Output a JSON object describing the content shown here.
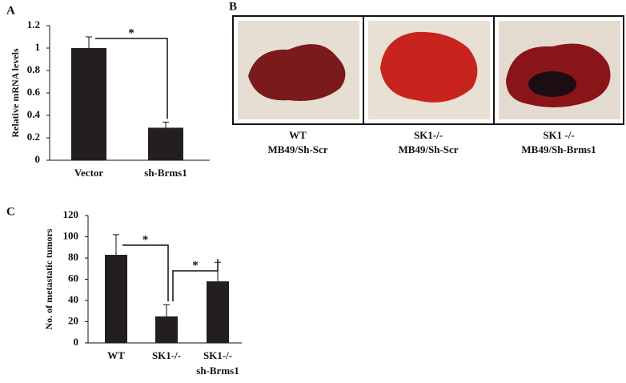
{
  "chart_data": [
    {
      "type": "bar",
      "panel_label": "A",
      "y_label": "Relative mRNA levels",
      "categories": [
        [
          "Vector"
        ],
        [
          "sh-Brms1"
        ]
      ],
      "values": [
        1.0,
        0.29
      ],
      "errors": [
        0.1,
        0.05
      ],
      "color": "#231f20",
      "ylim": [
        0,
        1.2
      ],
      "yticks": [
        0,
        0.2,
        0.4,
        0.6,
        0.8,
        1,
        1.2
      ],
      "significance": [
        "*"
      ]
    },
    {
      "type": "bar",
      "panel_label": "C",
      "y_label": "No. of metastatic tumors",
      "categories": [
        [
          "WT"
        ],
        [
          "SK1-/-"
        ],
        [
          "SK1-/-",
          "sh-Brms1"
        ]
      ],
      "values": [
        83,
        25,
        58
      ],
      "errors": [
        19,
        11,
        18
      ],
      "color": "#231f20",
      "ylim": [
        0,
        120
      ],
      "yticks": [
        0,
        20,
        40,
        60,
        80,
        100,
        120
      ],
      "significance": [
        "*",
        "*"
      ]
    }
  ],
  "photo_panel": {
    "panel_label": "B",
    "captions": [
      [
        "WT",
        "MB49/Sh-Scr"
      ],
      [
        "SK1-/-",
        "MB49/Sh-Scr"
      ],
      [
        "SK1 -/-",
        "MB49/Sh-Brms1"
      ]
    ]
  }
}
